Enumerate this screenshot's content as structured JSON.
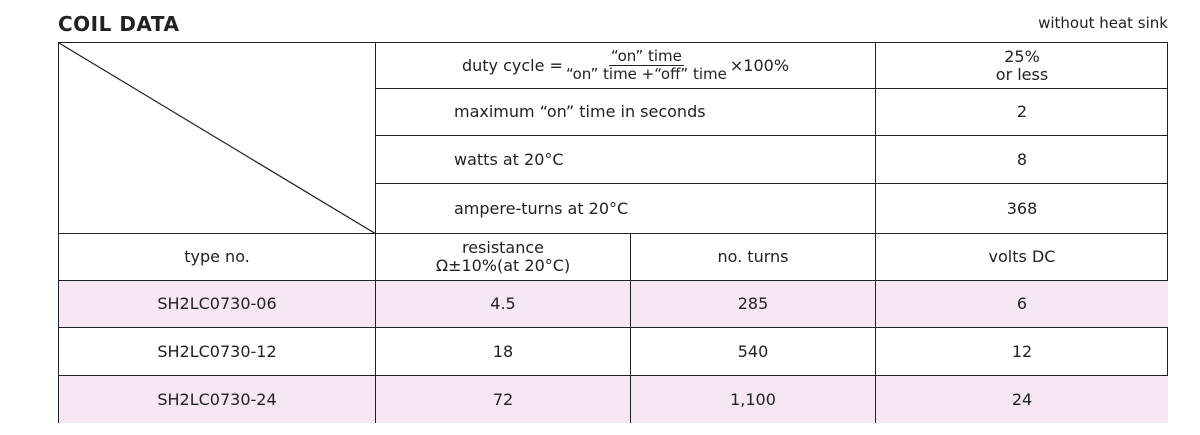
{
  "header": {
    "title": "COIL DATA",
    "note": "without heat sink"
  },
  "conditions": {
    "duty_cycle": {
      "lead": "duty cycle =",
      "numerator": "“on” time",
      "denominator": "“on” time +“off” time",
      "factor": "×100%",
      "value": [
        "25%",
        "or less"
      ]
    },
    "rows": [
      {
        "label": "maximum “on” time in seconds",
        "value": "2"
      },
      {
        "label": "watts at 20°C",
        "value": "8"
      },
      {
        "label": "ampere-turns at 20°C",
        "value": "368"
      }
    ]
  },
  "table": {
    "columns": [
      [
        "type no."
      ],
      [
        "resistance",
        "Ω±10%(at 20°C)"
      ],
      [
        "no. turns"
      ],
      [
        "volts DC"
      ]
    ],
    "rows": [
      [
        "SH2LC0730-06",
        "4.5",
        "285",
        "6"
      ],
      [
        "SH2LC0730-12",
        "18",
        "540",
        "12"
      ],
      [
        "SH2LC0730-24",
        "72",
        "1,100",
        "24"
      ]
    ]
  }
}
